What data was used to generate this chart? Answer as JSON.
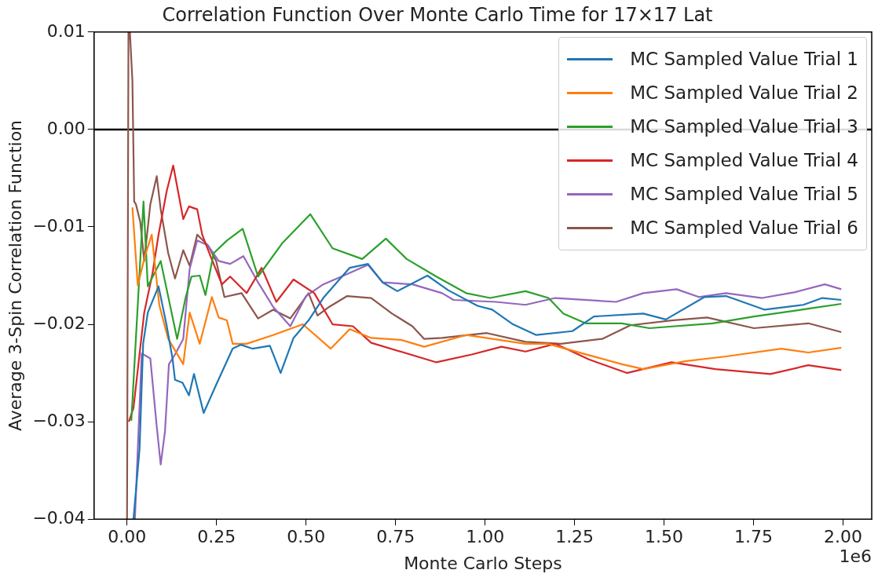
{
  "chart_data": {
    "type": "line",
    "title": "Correlation Function Over Monte Carlo Time for 17×17 Lat",
    "xlabel": "Monte Carlo Steps",
    "ylabel": "Average 3-Spin Correlation Function",
    "annotations": [
      "1e6"
    ],
    "xlim": [
      -0.092,
      2.08
    ],
    "ylim": [
      -0.04,
      0.01
    ],
    "xticks": [
      {
        "value": 0,
        "label": "0.00"
      },
      {
        "value": 0.25,
        "label": "0.25"
      },
      {
        "value": 0.5,
        "label": "0.50"
      },
      {
        "value": 0.75,
        "label": "0.75"
      },
      {
        "value": 1,
        "label": "1.00"
      },
      {
        "value": 1.25,
        "label": "1.25"
      },
      {
        "value": 1.5,
        "label": "1.50"
      },
      {
        "value": 1.75,
        "label": "1.75"
      },
      {
        "value": 2,
        "label": "2.00"
      }
    ],
    "yticks": [
      {
        "value": -0.04,
        "label": "−0.04"
      },
      {
        "value": -0.03,
        "label": "−0.03"
      },
      {
        "value": -0.02,
        "label": "−0.02"
      },
      {
        "value": -0.01,
        "label": "−0.01"
      },
      {
        "value": 0,
        "label": "0.00"
      },
      {
        "value": 0.01,
        "label": "0.01"
      }
    ],
    "grid": false,
    "legend": "top right",
    "marker": "none",
    "line_style": "solid",
    "ref_lines": [
      {
        "axis": "y",
        "value": 0,
        "color": "#000000"
      }
    ],
    "series": [
      {
        "name": "MC Sampled Value Trial 1",
        "color": "#1f77b4",
        "x": [
          0.018,
          0.035,
          0.045,
          0.058,
          0.088,
          0.11,
          0.127,
          0.134,
          0.155,
          0.173,
          0.187,
          0.214,
          0.249,
          0.295,
          0.318,
          0.35,
          0.399,
          0.429,
          0.465,
          0.507,
          0.548,
          0.622,
          0.673,
          0.714,
          0.755,
          0.839,
          0.897,
          0.979,
          1.02,
          1.078,
          1.143,
          1.244,
          1.304,
          1.442,
          1.505,
          1.613,
          1.673,
          1.781,
          1.889,
          1.942,
          1.995
        ],
        "values": [
          -0.04,
          -0.0328,
          -0.022,
          -0.0188,
          -0.0161,
          -0.02,
          -0.0235,
          -0.0257,
          -0.026,
          -0.0273,
          -0.0251,
          -0.0291,
          -0.0262,
          -0.0225,
          -0.0221,
          -0.0225,
          -0.0222,
          -0.025,
          -0.0214,
          -0.0196,
          -0.0173,
          -0.0142,
          -0.0138,
          -0.0157,
          -0.0166,
          -0.015,
          -0.0165,
          -0.0181,
          -0.0185,
          -0.02,
          -0.0211,
          -0.0207,
          -0.0192,
          -0.0189,
          -0.0195,
          -0.0172,
          -0.0171,
          -0.0185,
          -0.018,
          -0.0173,
          -0.0175
        ]
      },
      {
        "name": "MC Sampled Value Trial 2",
        "color": "#ff7f0e",
        "x": [
          0.015,
          0.03,
          0.05,
          0.069,
          0.09,
          0.115,
          0.157,
          0.175,
          0.203,
          0.237,
          0.256,
          0.279,
          0.295,
          0.334,
          0.408,
          0.491,
          0.569,
          0.622,
          0.682,
          0.765,
          0.83,
          0.947,
          1.113,
          1.175,
          1.382,
          1.442,
          1.558,
          1.673,
          1.827,
          1.903,
          1.995
        ],
        "values": [
          -0.008,
          -0.016,
          -0.013,
          -0.0108,
          -0.018,
          -0.0215,
          -0.0241,
          -0.0188,
          -0.022,
          -0.0172,
          -0.0193,
          -0.0196,
          -0.022,
          -0.022,
          -0.0211,
          -0.02,
          -0.0225,
          -0.0205,
          -0.0214,
          -0.0216,
          -0.0223,
          -0.0211,
          -0.022,
          -0.022,
          -0.0241,
          -0.0246,
          -0.0238,
          -0.0233,
          -0.0225,
          -0.0229,
          -0.0224
        ]
      },
      {
        "name": "MC Sampled Value Trial 3",
        "color": "#2ca02c",
        "x": [
          0.012,
          0.046,
          0.058,
          0.094,
          0.14,
          0.164,
          0.18,
          0.203,
          0.219,
          0.242,
          0.279,
          0.323,
          0.366,
          0.433,
          0.512,
          0.574,
          0.657,
          0.723,
          0.781,
          0.864,
          0.947,
          1.014,
          1.113,
          1.177,
          1.219,
          1.281,
          1.382,
          1.459,
          1.636,
          1.751,
          1.903,
          1.995
        ],
        "values": [
          -0.0299,
          -0.0074,
          -0.0161,
          -0.0135,
          -0.0215,
          -0.0172,
          -0.0151,
          -0.015,
          -0.017,
          -0.0127,
          -0.0114,
          -0.0102,
          -0.0151,
          -0.0117,
          -0.0087,
          -0.0122,
          -0.0133,
          -0.0112,
          -0.0133,
          -0.0151,
          -0.0168,
          -0.0173,
          -0.0166,
          -0.0173,
          -0.0189,
          -0.0199,
          -0.0199,
          -0.0204,
          -0.0199,
          -0.0192,
          -0.0184,
          -0.0179
        ]
      },
      {
        "name": "MC Sampled Value Trial 4",
        "color": "#d62728",
        "x": [
          0.005,
          0.018,
          0.048,
          0.071,
          0.088,
          0.111,
          0.129,
          0.157,
          0.173,
          0.196,
          0.21,
          0.233,
          0.265,
          0.288,
          0.334,
          0.376,
          0.417,
          0.465,
          0.523,
          0.574,
          0.631,
          0.682,
          0.864,
          0.963,
          1.046,
          1.113,
          1.196,
          1.29,
          1.396,
          1.521,
          1.643,
          1.797,
          1.903,
          1.995
        ],
        "values": [
          -0.03,
          -0.0286,
          -0.0188,
          -0.0148,
          -0.0108,
          -0.0063,
          -0.0037,
          -0.0092,
          -0.0079,
          -0.0082,
          -0.0108,
          -0.013,
          -0.0159,
          -0.0151,
          -0.0168,
          -0.0142,
          -0.0177,
          -0.0154,
          -0.0168,
          -0.02,
          -0.0202,
          -0.0219,
          -0.0239,
          -0.0231,
          -0.0223,
          -0.0228,
          -0.022,
          -0.0236,
          -0.025,
          -0.0239,
          -0.0246,
          -0.0251,
          -0.0242,
          -0.0247
        ]
      },
      {
        "name": "MC Sampled Value Trial 5",
        "color": "#9467bd",
        "x": [
          0.022,
          0.041,
          0.065,
          0.083,
          0.094,
          0.106,
          0.117,
          0.134,
          0.157,
          0.175,
          0.196,
          0.226,
          0.256,
          0.288,
          0.325,
          0.366,
          0.408,
          0.456,
          0.5,
          0.548,
          0.599,
          0.673,
          0.714,
          0.797,
          0.88,
          0.912,
          1.03,
          1.113,
          1.196,
          1.366,
          1.442,
          1.535,
          1.597,
          1.673,
          1.774,
          1.866,
          1.949,
          1.995
        ],
        "values": [
          -0.04,
          -0.023,
          -0.0235,
          -0.0305,
          -0.0344,
          -0.031,
          -0.0241,
          -0.0231,
          -0.0215,
          -0.0143,
          -0.0114,
          -0.0119,
          -0.0135,
          -0.0138,
          -0.013,
          -0.0157,
          -0.0182,
          -0.0202,
          -0.0171,
          -0.0159,
          -0.0151,
          -0.0139,
          -0.0157,
          -0.0159,
          -0.0168,
          -0.0175,
          -0.0177,
          -0.018,
          -0.0173,
          -0.0177,
          -0.0168,
          -0.0164,
          -0.0172,
          -0.0168,
          -0.0173,
          -0.0167,
          -0.0159,
          -0.0164
        ]
      },
      {
        "name": "MC Sampled Value Trial 6",
        "color": "#8c564b",
        "x": [
          0,
          0.004,
          0.008,
          0.015,
          0.02,
          0.025,
          0.037,
          0.048,
          0.065,
          0.083,
          0.094,
          0.115,
          0.134,
          0.157,
          0.175,
          0.196,
          0.226,
          0.249,
          0.272,
          0.32,
          0.366,
          0.408,
          0.456,
          0.507,
          0.532,
          0.565,
          0.615,
          0.682,
          0.74,
          0.797,
          0.83,
          0.88,
          1.005,
          1.113,
          1.212,
          1.327,
          1.406,
          1.521,
          1.62,
          1.751,
          1.903,
          1.995
        ],
        "values": [
          -0.04,
          0.01,
          0.01,
          0.005,
          -0.0074,
          -0.0077,
          -0.0095,
          -0.0135,
          -0.0077,
          -0.0048,
          -0.0082,
          -0.0127,
          -0.0153,
          -0.0124,
          -0.014,
          -0.0108,
          -0.0119,
          -0.0135,
          -0.0172,
          -0.0168,
          -0.0194,
          -0.0185,
          -0.0194,
          -0.0168,
          -0.0191,
          -0.0182,
          -0.0171,
          -0.0173,
          -0.0189,
          -0.0202,
          -0.0215,
          -0.0214,
          -0.0209,
          -0.0218,
          -0.022,
          -0.0215,
          -0.0201,
          -0.0196,
          -0.0193,
          -0.0204,
          -0.0199,
          -0.0208
        ]
      }
    ]
  }
}
